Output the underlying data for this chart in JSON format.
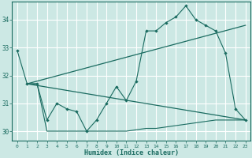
{
  "xlabel": "Humidex (Indice chaleur)",
  "bg_color": "#cce8e4",
  "line_color": "#1a6b60",
  "grid_color": "#ffffff",
  "xlim": [
    -0.5,
    23.5
  ],
  "ylim": [
    29.65,
    34.65
  ],
  "yticks": [
    30,
    31,
    32,
    33,
    34
  ],
  "xticks": [
    0,
    1,
    2,
    3,
    4,
    5,
    6,
    7,
    8,
    9,
    10,
    11,
    12,
    13,
    14,
    15,
    16,
    17,
    18,
    19,
    20,
    21,
    22,
    23
  ],
  "curve1_x": [
    0,
    1,
    2,
    3,
    4,
    5,
    6,
    7,
    8,
    9,
    10,
    11,
    12,
    13,
    14,
    15,
    16,
    17,
    18,
    19,
    20,
    21,
    22,
    23
  ],
  "curve1_y": [
    32.9,
    31.7,
    31.7,
    30.4,
    31.0,
    30.8,
    30.7,
    30.0,
    30.4,
    31.0,
    31.6,
    31.1,
    31.8,
    33.6,
    33.6,
    33.9,
    34.1,
    34.5,
    34.0,
    33.8,
    33.6,
    32.8,
    30.8,
    30.4
  ],
  "curve2_x": [
    1,
    2,
    3,
    4,
    5,
    6,
    7,
    8,
    9,
    10,
    11,
    12,
    13,
    14,
    15,
    16,
    17,
    18,
    19,
    20,
    21,
    22,
    23
  ],
  "curve2_y": [
    31.7,
    31.7,
    30.0,
    30.0,
    30.0,
    30.0,
    30.0,
    30.0,
    30.0,
    30.0,
    30.0,
    30.05,
    30.1,
    30.1,
    30.15,
    30.2,
    30.25,
    30.3,
    30.35,
    30.4,
    30.4,
    30.4,
    30.4
  ],
  "trend1_x": [
    1,
    23
  ],
  "trend1_y": [
    31.7,
    33.8
  ],
  "trend2_x": [
    1,
    23
  ],
  "trend2_y": [
    31.7,
    30.4
  ]
}
